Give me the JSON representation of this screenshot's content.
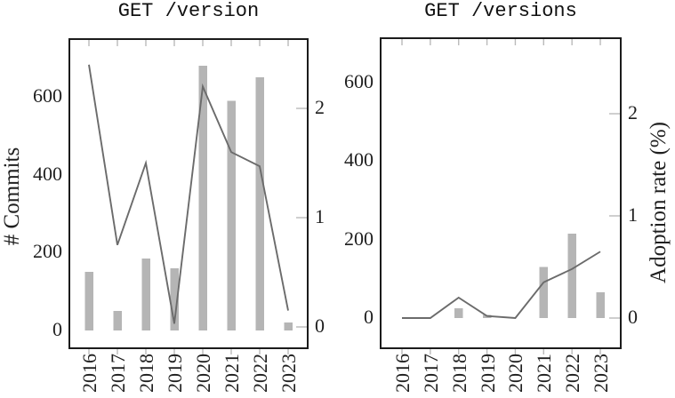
{
  "ylabel_left": "# Commits",
  "ylabel_right": "Adoption rate (%)",
  "colors": {
    "bar": "#b5b5b5",
    "line": "#6b6b6b",
    "axis": "#1b1b1b",
    "tick": "#bababa",
    "text": "#1f1f1f",
    "background": "#ffffff"
  },
  "chart_data": [
    {
      "type": "bar+line",
      "title": "GET /version",
      "categories": [
        "2016",
        "2017",
        "2018",
        "2019",
        "2020",
        "2021",
        "2022",
        "2023"
      ],
      "series": [
        {
          "name": "# Commits",
          "type": "bar",
          "axis": "left",
          "values": [
            150,
            50,
            185,
            160,
            680,
            590,
            650,
            20
          ]
        },
        {
          "name": "Adoption rate (%)",
          "type": "line",
          "axis": "right",
          "values": [
            2.4,
            0.75,
            1.5,
            0.03,
            2.2,
            1.6,
            1.47,
            0.15
          ]
        }
      ],
      "left_axis": {
        "label": "# Commits",
        "ticks": [
          0,
          200,
          400,
          600
        ],
        "range": [
          -55,
          748
        ]
      },
      "right_axis": {
        "label": "Adoption rate (%)",
        "ticks": [
          0,
          1,
          2
        ],
        "range": [
          -0.2,
          2.63
        ]
      },
      "grid": false,
      "legend": null
    },
    {
      "type": "bar+line",
      "title": "GET /versions",
      "categories": [
        "2016",
        "2017",
        "2018",
        "2019",
        "2020",
        "2021",
        "2022",
        "2023"
      ],
      "series": [
        {
          "name": "# Commits",
          "type": "bar",
          "axis": "left",
          "values": [
            0,
            0,
            25,
            8,
            0,
            130,
            215,
            65
          ]
        },
        {
          "name": "Adoption rate (%)",
          "type": "line",
          "axis": "right",
          "values": [
            0,
            0,
            0.2,
            0.02,
            0,
            0.35,
            0.48,
            0.65
          ]
        }
      ],
      "left_axis": {
        "label": "# Commits",
        "ticks": [
          0,
          200,
          400,
          600
        ],
        "range": [
          -77,
          712
        ]
      },
      "right_axis": {
        "label": "Adoption rate (%)",
        "ticks": [
          0,
          1,
          2
        ],
        "range": [
          -0.3,
          2.74
        ]
      },
      "grid": false,
      "legend": null
    }
  ]
}
